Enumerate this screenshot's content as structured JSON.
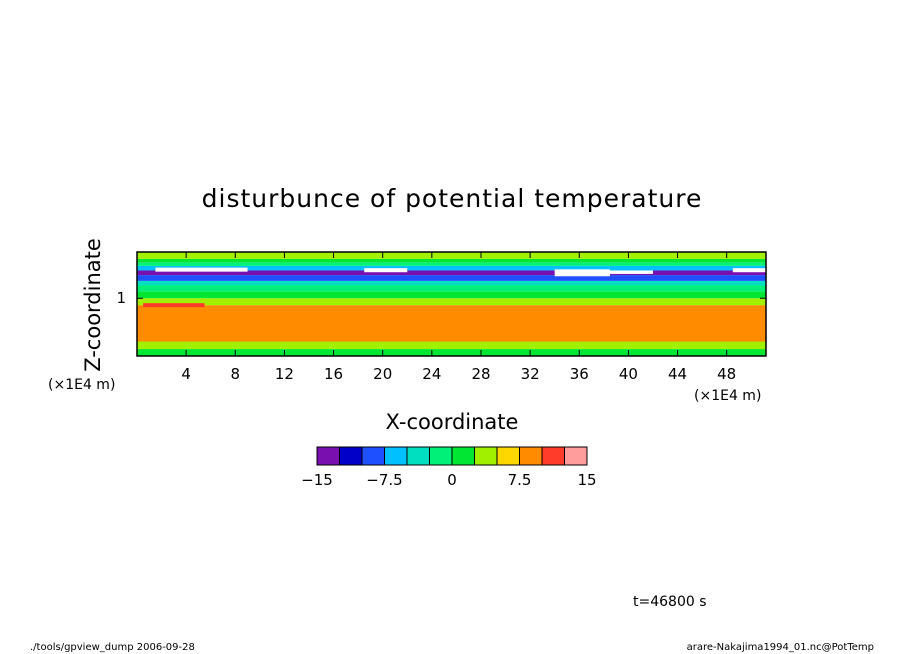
{
  "chart_data": {
    "type": "heatmap",
    "title": "disturbunce of potential temperature",
    "xlabel": "X-coordinate",
    "ylabel": "Z-coordinate",
    "x_unit": "(×1E4 m)",
    "y_unit": "(×1E4 m)",
    "x_ticks": [
      "4",
      "8",
      "12",
      "16",
      "20",
      "24",
      "28",
      "32",
      "36",
      "40",
      "44",
      "48"
    ],
    "x_tick_values": [
      4,
      8,
      12,
      16,
      20,
      24,
      28,
      32,
      36,
      40,
      44,
      48
    ],
    "xlim": [
      0,
      51.2
    ],
    "y_ticks": [
      "1"
    ],
    "y_tick_values": [
      1
    ],
    "ylim": [
      0,
      1.8
    ],
    "colorbar": {
      "levels": [
        -15,
        -12.5,
        -10,
        -7.5,
        -5,
        -2.5,
        0,
        2.5,
        5,
        7.5,
        10,
        12.5,
        15
      ],
      "colors": [
        "#7a0fb0",
        "#0000c8",
        "#1e50ff",
        "#00c0ff",
        "#00e0c0",
        "#00f078",
        "#00e632",
        "#a0f000",
        "#ffd700",
        "#ff8c00",
        "#ff3c2a",
        "#ff9c9c"
      ],
      "labels": [
        "−15",
        "−7.5",
        "0",
        "7.5",
        "15"
      ],
      "label_values": [
        -15,
        -7.5,
        0,
        7.5,
        15
      ]
    },
    "field": {
      "layers": [
        {
          "z_from": 0.0,
          "z_to": 0.12,
          "value": 1
        },
        {
          "z_from": 0.12,
          "z_to": 0.25,
          "value": 4
        },
        {
          "z_from": 0.25,
          "z_to": 0.88,
          "value": 8.5
        },
        {
          "z_from": 0.88,
          "z_to": 1.0,
          "value": 4
        },
        {
          "z_from": 1.0,
          "z_to": 1.12,
          "value": 1
        },
        {
          "z_from": 1.12,
          "z_to": 1.22,
          "value": -2
        },
        {
          "z_from": 1.22,
          "z_to": 1.3,
          "value": -5
        },
        {
          "z_from": 1.3,
          "z_to": 1.4,
          "value": -9
        },
        {
          "z_from": 1.4,
          "z_to": 1.48,
          "value": -13
        },
        {
          "z_from": 1.48,
          "z_to": 1.56,
          "value": -6
        },
        {
          "z_from": 1.56,
          "z_to": 1.62,
          "value": -1
        },
        {
          "z_from": 1.62,
          "z_to": 1.68,
          "value": 1
        },
        {
          "z_from": 1.68,
          "z_to": 1.8,
          "value": 3
        }
      ],
      "white_patches": [
        {
          "x_from": 1.5,
          "x_to": 9.0,
          "z_from": 1.46,
          "z_to": 1.53
        },
        {
          "x_from": 18.5,
          "x_to": 22.0,
          "z_from": 1.45,
          "z_to": 1.52
        },
        {
          "x_from": 34.0,
          "x_to": 38.5,
          "z_from": 1.38,
          "z_to": 1.5
        },
        {
          "x_from": 38.5,
          "x_to": 42.0,
          "z_from": 1.42,
          "z_to": 1.48
        },
        {
          "x_from": 48.5,
          "x_to": 51.2,
          "z_from": 1.45,
          "z_to": 1.52
        }
      ],
      "hot_spot": {
        "x_from": 0.5,
        "x_to": 5.5,
        "z": 0.88,
        "value": 11
      }
    }
  },
  "footer": {
    "time_label": "t=46800 s",
    "left": "./tools/gpview_dump 2006-09-28",
    "right": "arare-Nakajima1994_01.nc@PotTemp"
  }
}
